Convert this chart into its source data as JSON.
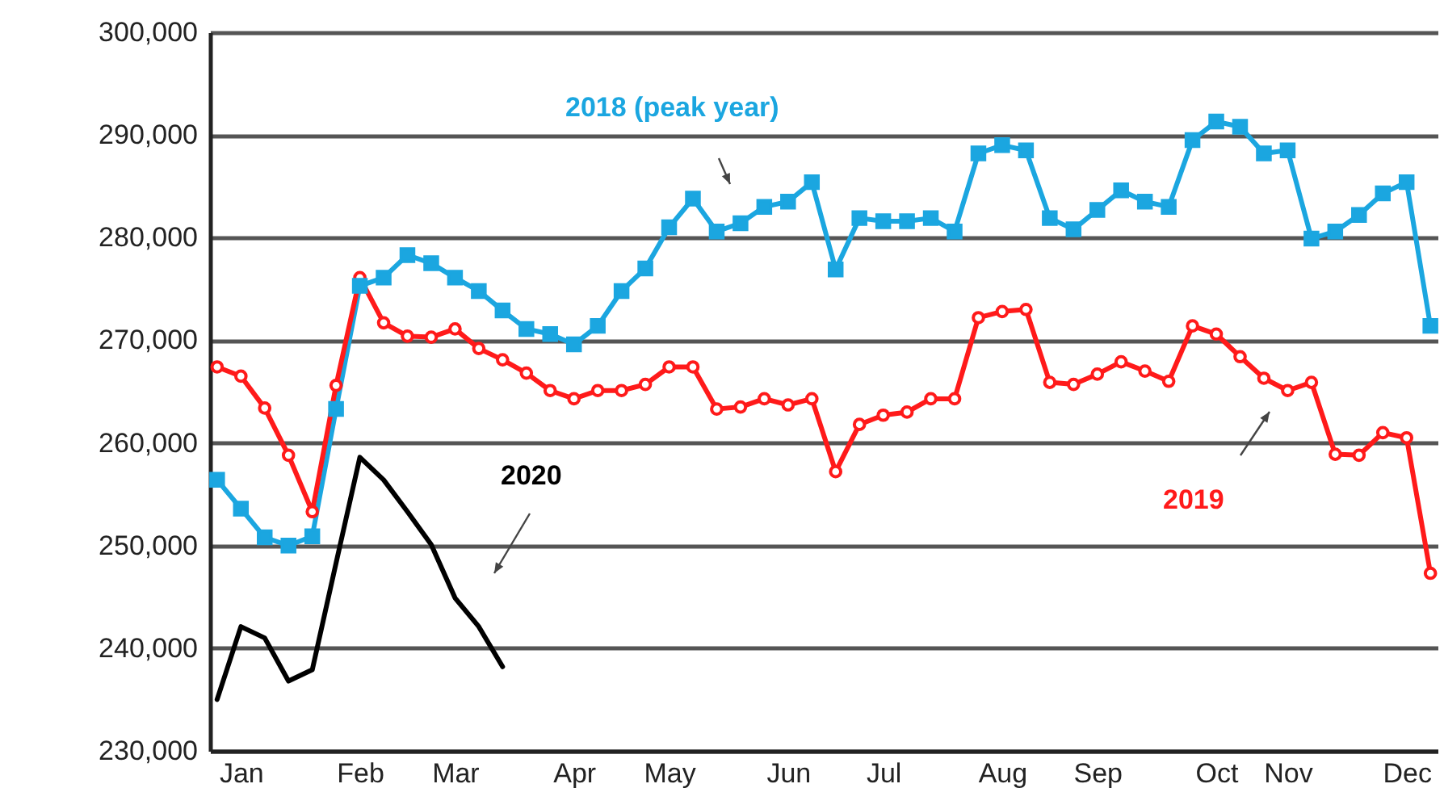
{
  "chart_data": {
    "type": "line",
    "ylim": [
      230000,
      300000
    ],
    "categories": [
      null,
      "Jan",
      null,
      null,
      null,
      null,
      "Feb",
      null,
      null,
      null,
      "Mar",
      null,
      null,
      null,
      null,
      "Apr",
      null,
      null,
      null,
      "May",
      null,
      null,
      null,
      null,
      "Jun",
      null,
      null,
      null,
      "Jul",
      null,
      null,
      null,
      null,
      "Aug",
      null,
      null,
      null,
      "Sep",
      null,
      null,
      null,
      null,
      "Oct",
      null,
      null,
      "Nov",
      null,
      null,
      null,
      null,
      "Dec",
      null
    ],
    "yticks": [
      {
        "value": 230000,
        "label": "230,000"
      },
      {
        "value": 240000,
        "label": "240,000"
      },
      {
        "value": 250000,
        "label": "250,000"
      },
      {
        "value": 260000,
        "label": "260,000"
      },
      {
        "value": 270000,
        "label": "270,000"
      },
      {
        "value": 280000,
        "label": "280,000"
      },
      {
        "value": 290000,
        "label": "290,000"
      },
      {
        "value": 300000,
        "label": "300,000"
      }
    ],
    "grid": "y",
    "line_style": "solid",
    "series": [
      {
        "name": "2018 (peak year)",
        "color": "#1ba6e0",
        "marker": "square",
        "values": [
          256400,
          253600,
          250800,
          250000,
          250900,
          263300,
          275300,
          276100,
          278300,
          277500,
          276100,
          274800,
          272900,
          271100,
          270600,
          269600,
          271400,
          274800,
          277000,
          281000,
          283800,
          280600,
          281400,
          283000,
          283500,
          285400,
          276900,
          281900,
          281600,
          281600,
          281900,
          280600,
          288200,
          289000,
          288500,
          281900,
          280800,
          282700,
          284600,
          283500,
          283000,
          289500,
          291300,
          290800,
          288200,
          288500,
          279900,
          280600,
          282200,
          284300,
          285400,
          271400
        ]
      },
      {
        "name": "2019",
        "color": "#ff1a1a",
        "marker": "circle",
        "values": [
          267400,
          266500,
          263400,
          258800,
          253300,
          265600,
          276100,
          271700,
          270400,
          270300,
          271100,
          269200,
          268100,
          266800,
          265100,
          264300,
          265100,
          265100,
          265700,
          267400,
          267400,
          263300,
          263500,
          264300,
          263700,
          264300,
          257200,
          261800,
          262700,
          263000,
          264300,
          264300,
          272200,
          272800,
          273000,
          265900,
          265700,
          266700,
          267900,
          267000,
          266000,
          271400,
          270600,
          268400,
          266300,
          265100,
          265900,
          258900,
          258800,
          261000,
          260500,
          247300
        ]
      },
      {
        "name": "2020",
        "color": "#000000",
        "marker": "none",
        "values": [
          235000,
          242100,
          241000,
          236800,
          237900,
          248300,
          258600,
          256400,
          253300,
          250100,
          244900,
          242100,
          238200,
          null,
          null,
          null,
          null,
          null,
          null,
          null,
          null,
          null,
          null,
          null,
          null,
          null,
          null,
          null,
          null,
          null,
          null,
          null,
          null,
          null,
          null,
          null,
          null,
          null,
          null,
          null,
          null,
          null,
          null,
          null,
          null,
          null,
          null,
          null,
          null,
          null,
          null,
          null
        ]
      }
    ]
  }
}
